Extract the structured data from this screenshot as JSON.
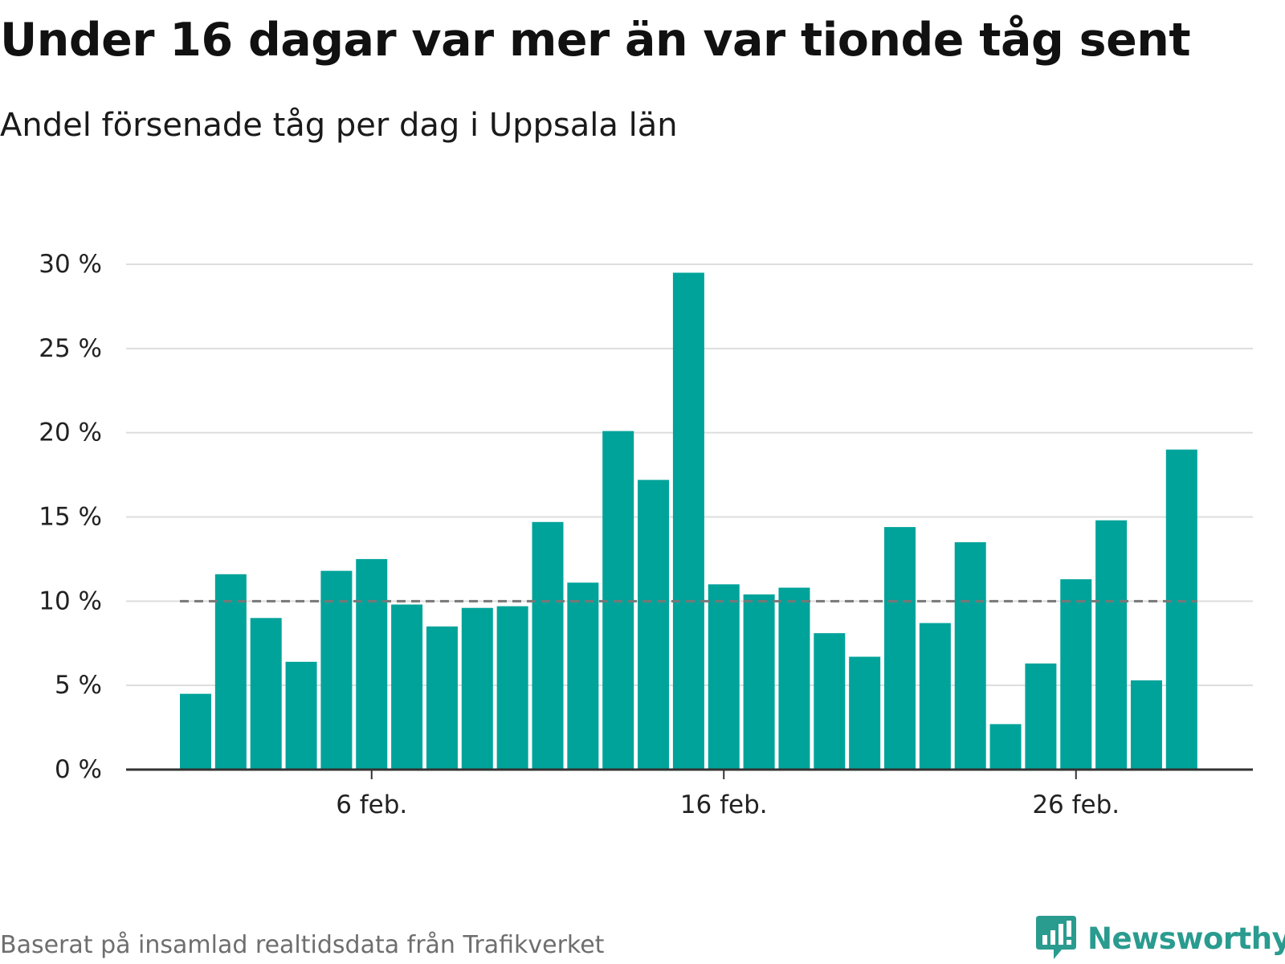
{
  "title": "Under 16 dagar var mer än var tionde tåg sent",
  "subtitle": "Andel försenade tåg per dag i Uppsala län",
  "source": "Baserat på insamlad realtidsdata från Trafikverket",
  "brand": {
    "name": "Newsworthy",
    "icon": "newsworthy-logo-icon",
    "color": "#2a9b8f"
  },
  "colors": {
    "bar": "#00a39a",
    "reference_line": "#777777",
    "grid": "#dddddd",
    "axis": "#333333"
  },
  "chart_data": {
    "type": "bar",
    "x": [
      1,
      2,
      3,
      4,
      5,
      6,
      7,
      8,
      9,
      10,
      11,
      12,
      13,
      14,
      15,
      16,
      17,
      18,
      19,
      20,
      21,
      22,
      23,
      24,
      25,
      26,
      27,
      28,
      29
    ],
    "x_unit": "day of February",
    "values": [
      4.5,
      11.6,
      9.0,
      6.4,
      11.8,
      12.5,
      9.8,
      8.5,
      9.6,
      9.7,
      14.7,
      11.1,
      20.1,
      17.2,
      29.5,
      11.0,
      10.4,
      10.8,
      8.1,
      6.7,
      14.4,
      8.7,
      13.5,
      2.7,
      6.3,
      11.3,
      14.8,
      5.3,
      19.0
    ],
    "reference_line": 10,
    "reference_line_style": "dashed",
    "ylim": [
      0,
      30
    ],
    "y_ticks": [
      0,
      5,
      10,
      15,
      20,
      25,
      30
    ],
    "y_tick_labels": [
      "0 %",
      "5 %",
      "10 %",
      "15 %",
      "20 %",
      "25 %",
      "30 %"
    ],
    "x_ticks": [
      6,
      16,
      26
    ],
    "x_tick_labels": [
      "6 feb.",
      "16 feb.",
      "26 feb."
    ],
    "xlabel": "",
    "ylabel": "",
    "grid": true,
    "legend": "none"
  }
}
